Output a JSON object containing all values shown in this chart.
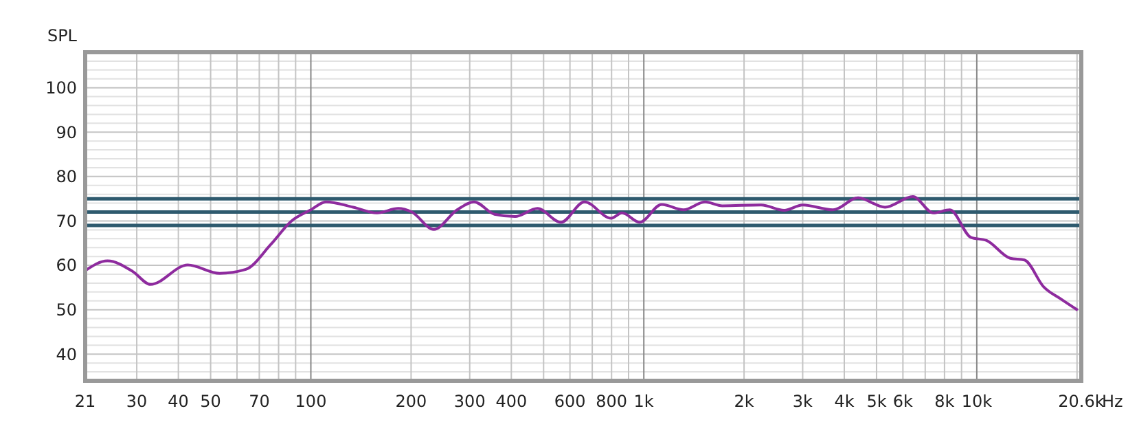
{
  "chart_data": {
    "type": "line",
    "ylabel": "SPL",
    "xlabel": "Hz",
    "log": "x",
    "grid": true,
    "marker": "none",
    "line_style": "solid",
    "xlim": [
      21,
      20600
    ],
    "ylim": [
      34,
      108
    ],
    "xticks": [
      21,
      30,
      40,
      50,
      {
        "value": 60,
        "label": null
      },
      70,
      {
        "value": 80,
        "label": null
      },
      {
        "value": 90,
        "label": null
      },
      100,
      200,
      300,
      400,
      {
        "value": 500,
        "label": null
      },
      600,
      {
        "value": 700,
        "label": null
      },
      800,
      {
        "value": 900,
        "label": null
      },
      {
        "value": 1000,
        "label": "1k"
      },
      {
        "value": 2000,
        "label": "2k"
      },
      {
        "value": 3000,
        "label": "3k"
      },
      {
        "value": 4000,
        "label": "4k"
      },
      {
        "value": 5000,
        "label": "5k"
      },
      {
        "value": 6000,
        "label": "6k"
      },
      {
        "value": 7000,
        "label": null
      },
      {
        "value": 8000,
        "label": "8k"
      },
      {
        "value": 9000,
        "label": null
      },
      {
        "value": 10000,
        "label": "10k"
      },
      {
        "value": 20000,
        "label": null
      },
      {
        "value": 20600,
        "label": "20.6k"
      }
    ],
    "yticks": [
      {
        "value": 36,
        "label": null
      },
      {
        "value": 38,
        "label": null
      },
      40,
      {
        "value": 42,
        "label": null
      },
      {
        "value": 44,
        "label": null
      },
      {
        "value": 46,
        "label": null
      },
      {
        "value": 48,
        "label": null
      },
      50,
      {
        "value": 52,
        "label": null
      },
      {
        "value": 54,
        "label": null
      },
      {
        "value": 56,
        "label": null
      },
      {
        "value": 58,
        "label": null
      },
      60,
      {
        "value": 62,
        "label": null
      },
      {
        "value": 64,
        "label": null
      },
      {
        "value": 66,
        "label": null
      },
      {
        "value": 68,
        "label": null
      },
      70,
      {
        "value": 72,
        "label": null
      },
      {
        "value": 74,
        "label": null
      },
      {
        "value": 76,
        "label": null
      },
      {
        "value": 78,
        "label": null
      },
      80,
      {
        "value": 82,
        "label": null
      },
      {
        "value": 84,
        "label": null
      },
      {
        "value": 86,
        "label": null
      },
      {
        "value": 88,
        "label": null
      },
      90,
      {
        "value": 92,
        "label": null
      },
      {
        "value": 94,
        "label": null
      },
      {
        "value": 96,
        "label": null
      },
      {
        "value": 98,
        "label": null
      },
      100,
      {
        "value": 102,
        "label": null
      },
      {
        "value": 104,
        "label": null
      },
      {
        "value": 106,
        "label": null
      }
    ],
    "ref_lines": [
      {
        "axis": "y",
        "value": 75,
        "color": "#2e5a6e"
      },
      {
        "axis": "y",
        "value": 72,
        "color": "#2e5a6e"
      },
      {
        "axis": "y",
        "value": 69,
        "color": "#2e5a6e"
      }
    ],
    "series": [
      {
        "color": "#8e2b9e",
        "x": [
          21,
          24.5,
          29.2,
          33,
          42.7,
          53.2,
          63.8,
          75.8,
          87.5,
          100,
          111,
          134,
          158,
          183,
          201,
          234,
          275,
          309,
          356,
          411,
          479,
          564,
          663,
          798,
          860,
          972,
          1131,
          1316,
          1528,
          1720,
          2250,
          2640,
          3000,
          3700,
          4400,
          5300,
          6430,
          7400,
          8300,
          9600,
          10700,
          12600,
          13900,
          15900,
          17900,
          20100
        ],
        "values": [
          58.8,
          61,
          58.6,
          55.7,
          60.1,
          58.2,
          59.1,
          64.7,
          70,
          72.5,
          74.3,
          73.1,
          71.8,
          72.8,
          72,
          68.1,
          72.5,
          74.3,
          71.5,
          71,
          72.8,
          69.7,
          74.3,
          70.6,
          71.8,
          69.7,
          73.7,
          72.5,
          74.3,
          73.4,
          73.6,
          72.4,
          73.6,
          72.5,
          75.2,
          73.1,
          75.5,
          71.8,
          72.5,
          66.3,
          65.6,
          61.6,
          61.2,
          55.1,
          52.4,
          49.9
        ]
      }
    ]
  }
}
